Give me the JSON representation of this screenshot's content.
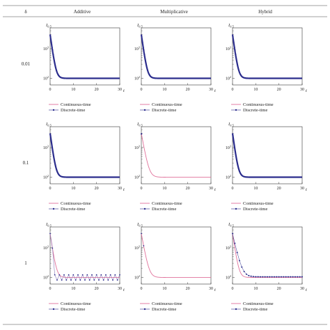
{
  "header": {
    "delta_label": "δ",
    "columns": [
      "Additive",
      "Multiplicative",
      "Hybrid"
    ]
  },
  "rows": [
    "0.01",
    "0.1",
    "1"
  ],
  "colors": {
    "continuous": "#e0709a",
    "discrete": "#2a2c8c",
    "axis": "#333333"
  },
  "chart_data": {
    "type": "line",
    "layout": "grid",
    "x_label": "t",
    "y_label": "I",
    "y_label_sub": "0.5",
    "y_scale": "log",
    "x_range": [
      0,
      30
    ],
    "x_ticks": [
      0,
      10,
      20,
      30
    ],
    "y_ticks": [
      {
        "value": 100,
        "label": "10",
        "exp": "2"
      },
      {
        "value": 1000,
        "label": "10",
        "exp": "3"
      }
    ],
    "legend": [
      "Continuous-time",
      "Discrete-time"
    ],
    "legend_position": "bottom",
    "panels": [
      {
        "row": "0.01",
        "column": "Additive",
        "continuous": {
          "start": 3000,
          "end": 100,
          "decay": 1.3
        },
        "discrete": {
          "start": 3000,
          "end": 100,
          "decay": 1.3,
          "step": 0.01,
          "oscillation": 0
        }
      },
      {
        "row": "0.01",
        "column": "Multiplicative",
        "continuous": {
          "start": 3000,
          "end": 100,
          "decay": 1.3
        },
        "discrete": {
          "start": 3000,
          "end": 100,
          "decay": 1.3,
          "step": 0.01,
          "oscillation": 0
        }
      },
      {
        "row": "0.01",
        "column": "Hybrid",
        "continuous": {
          "start": 3000,
          "end": 100,
          "decay": 1.3
        },
        "discrete": {
          "start": 3000,
          "end": 100,
          "decay": 1.3,
          "step": 0.01,
          "oscillation": 0
        }
      },
      {
        "row": "0.1",
        "column": "Additive",
        "continuous": {
          "start": 3000,
          "end": 100,
          "decay": 1.3
        },
        "discrete": {
          "start": 3000,
          "end": 100,
          "decay": 1.3,
          "step": 0.1,
          "oscillation": 0
        }
      },
      {
        "row": "0.1",
        "column": "Multiplicative",
        "continuous": {
          "start": 3000,
          "end": 100,
          "decay": 1.0
        },
        "discrete": {
          "start": 3000,
          "end": 100,
          "decay": 1.0,
          "step": 0.1,
          "oscillation": 0,
          "points_shown": 2
        }
      },
      {
        "row": "0.1",
        "column": "Hybrid",
        "continuous": {
          "start": 3000,
          "end": 100,
          "decay": 1.3
        },
        "discrete": {
          "start": 3000,
          "end": 100,
          "decay": 1.3,
          "step": 0.1,
          "oscillation": 0
        }
      },
      {
        "row": "1",
        "column": "Additive",
        "continuous": {
          "start": 3000,
          "end": 100,
          "decay": 1.2
        },
        "discrete": {
          "start": 3000,
          "end": 100,
          "decay": 1.2,
          "step": 1,
          "oscillation": 0.45
        }
      },
      {
        "row": "1",
        "column": "Multiplicative",
        "continuous": {
          "start": 3000,
          "end": 100,
          "decay": 1.0
        },
        "discrete": {
          "start": 3000,
          "end": 100,
          "decay": 1.0,
          "step": 1,
          "oscillation": 0,
          "points_shown": 2
        }
      },
      {
        "row": "1",
        "column": "Hybrid",
        "continuous": {
          "start": 3000,
          "end": 100,
          "decay": 1.2
        },
        "discrete": {
          "start": 3000,
          "end": 105,
          "decay": 0.8,
          "step": 1,
          "oscillation": 0
        }
      }
    ]
  }
}
